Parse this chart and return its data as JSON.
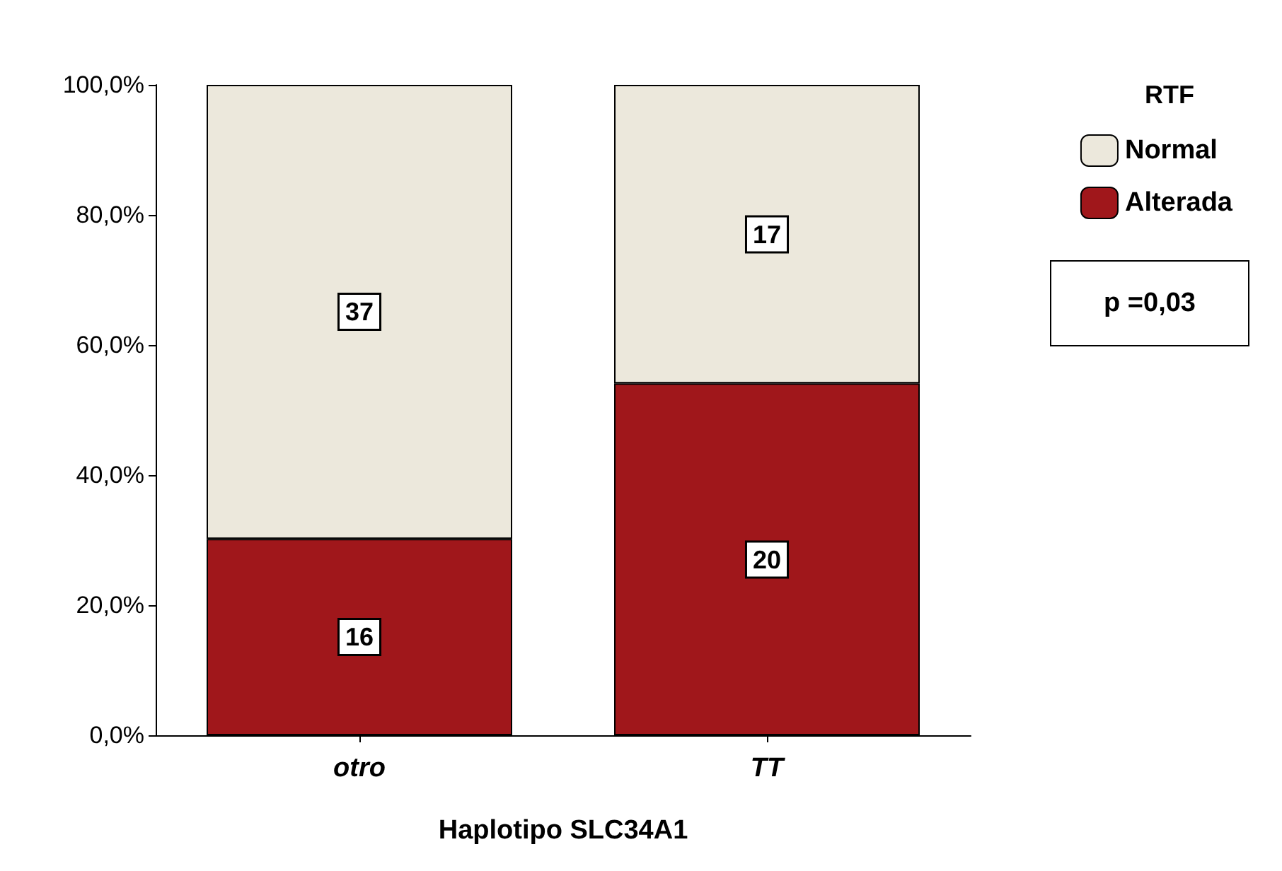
{
  "chart_data": {
    "type": "bar",
    "stacked": true,
    "xlabel": "Haplotipo SLC34A1",
    "legend_title": "RTF",
    "annotations": [
      "p =0,03",
      {
        "text": "16",
        "x": "otro",
        "y": 15.1
      },
      {
        "text": "37",
        "x": "otro",
        "y": 65.1
      },
      {
        "text": "20",
        "x": "TT",
        "y": 27
      },
      {
        "text": "17",
        "x": "TT",
        "y": 77
      }
    ],
    "categories": [
      "otro",
      "TT"
    ],
    "series": [
      {
        "name": "Alterada",
        "color": "#a0171b",
        "values": [
          30.2,
          54.1
        ]
      },
      {
        "name": "Normal",
        "color": "#ece8dc",
        "values": [
          69.8,
          45.9
        ]
      }
    ],
    "ylim": [
      0,
      100
    ],
    "yticks": [
      {
        "value": 0,
        "label": "0,0%"
      },
      {
        "value": 20,
        "label": "20,0%"
      },
      {
        "value": 40,
        "label": "40,0%"
      },
      {
        "value": 60,
        "label": "60,0%"
      },
      {
        "value": 80,
        "label": "80,0%"
      },
      {
        "value": 100,
        "label": "100,0%"
      }
    ],
    "grid": false,
    "legend": "top right"
  }
}
